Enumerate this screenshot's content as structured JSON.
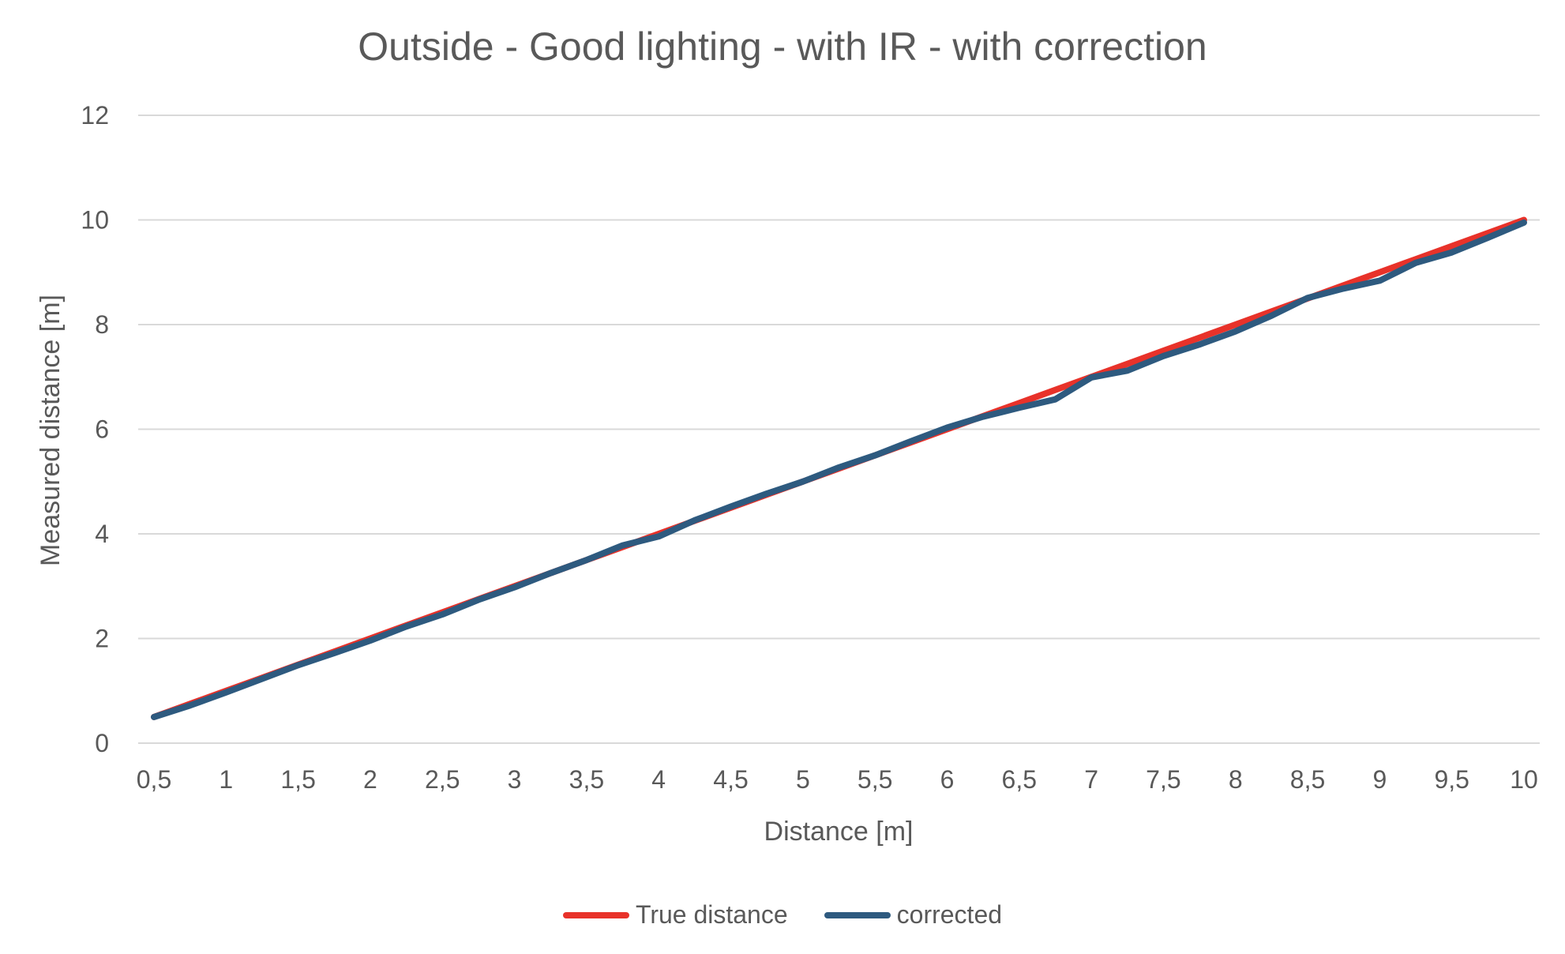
{
  "chart_data": {
    "type": "line",
    "title": "Outside - Good lighting - with IR - with correction",
    "xlabel": "Distance [m]",
    "ylabel": "Measured distance [m]",
    "ylim": [
      0,
      12
    ],
    "yticks": [
      "0",
      "2",
      "4",
      "6",
      "8",
      "10",
      "12"
    ],
    "categories": [
      "0,5",
      "",
      "1",
      "",
      "1,5",
      "",
      "2",
      "",
      "2,5",
      "",
      "3",
      "",
      "3,5",
      "",
      "4",
      "",
      "4,5",
      "",
      "5",
      "",
      "5,5",
      "",
      "6",
      "",
      "6,5",
      "",
      "7",
      "",
      "7,5",
      "",
      "8",
      "",
      "8,5",
      "",
      "9",
      "",
      "9,5",
      "",
      "10"
    ],
    "x": [
      0.5,
      0.75,
      1,
      1.25,
      1.5,
      1.75,
      2,
      2.25,
      2.5,
      2.75,
      3,
      3.25,
      3.5,
      3.75,
      4,
      4.25,
      4.5,
      4.75,
      5,
      5.25,
      5.5,
      5.75,
      6,
      6.25,
      6.5,
      6.75,
      7,
      7.25,
      7.5,
      7.75,
      8,
      8.25,
      8.5,
      8.75,
      9,
      9.25,
      9.5,
      9.75,
      10
    ],
    "series": [
      {
        "name": "True distance",
        "color": "#e8322a",
        "values": [
          0.5,
          0.75,
          1,
          1.25,
          1.5,
          1.75,
          2,
          2.25,
          2.5,
          2.75,
          3,
          3.25,
          3.5,
          3.75,
          4,
          4.25,
          4.5,
          4.75,
          5,
          5.25,
          5.5,
          5.75,
          6,
          6.25,
          6.5,
          6.75,
          7,
          7.25,
          7.5,
          7.75,
          8,
          8.25,
          8.5,
          8.75,
          9,
          9.25,
          9.5,
          9.75,
          10
        ]
      },
      {
        "name": "corrected",
        "color": "#2e5a7f",
        "values": [
          0.5,
          0.72,
          0.97,
          1.23,
          1.49,
          1.72,
          1.96,
          2.23,
          2.46,
          2.74,
          2.98,
          3.25,
          3.5,
          3.78,
          3.95,
          4.26,
          4.52,
          4.77,
          5.0,
          5.27,
          5.5,
          5.77,
          6.03,
          6.24,
          6.41,
          6.57,
          6.99,
          7.12,
          7.4,
          7.62,
          7.87,
          8.17,
          8.51,
          8.69,
          8.84,
          9.18,
          9.38,
          9.66,
          9.95
        ]
      }
    ],
    "legend_position": "bottom",
    "grid": true
  }
}
